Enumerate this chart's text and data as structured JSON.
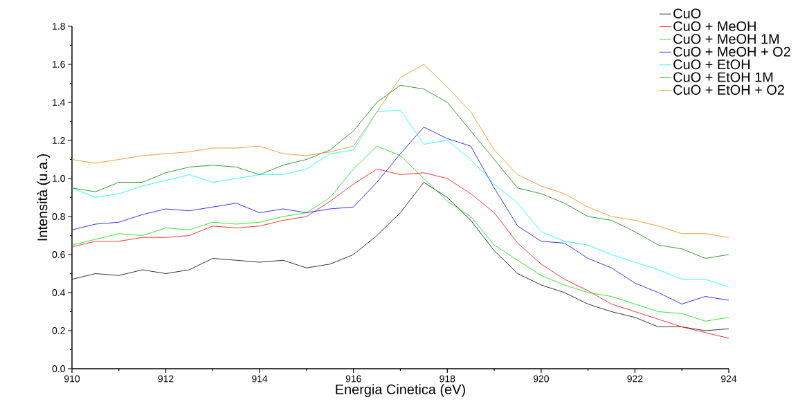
{
  "chart_data": {
    "type": "line",
    "xlabel": "Energia Cinetica (eV)",
    "ylabel": "Intensità (u.a.)",
    "x": [
      910,
      910.5,
      911,
      911.5,
      912,
      912.5,
      913,
      913.5,
      914,
      914.5,
      915,
      915.5,
      916,
      916.5,
      917,
      917.5,
      918,
      918.5,
      919,
      919.5,
      920,
      920.5,
      921,
      921.5,
      922,
      922.5,
      923,
      923.5,
      924
    ],
    "xlim": [
      910,
      924
    ],
    "xticks": [
      910,
      912,
      914,
      916,
      918,
      920,
      922,
      924
    ],
    "ylim": [
      0,
      1.8
    ],
    "yticks": [
      {
        "value": 0,
        "label": "0.0"
      },
      {
        "value": 0.2,
        "label": "0.2"
      },
      {
        "value": 0.4,
        "label": "0.4"
      },
      {
        "value": 0.6,
        "label": "0.6"
      },
      {
        "value": 0.8,
        "label": "0.8"
      },
      {
        "value": 1.0,
        "label": "1.0"
      },
      {
        "value": 1.2,
        "label": "1.2"
      },
      {
        "value": 1.4,
        "label": "1.4"
      },
      {
        "value": 1.6,
        "label": "1.6"
      },
      {
        "value": 1.8,
        "label": "1.8"
      }
    ],
    "grid": false,
    "legend": "top right",
    "marker": "none",
    "line_style": "solid",
    "series": [
      {
        "name": "CuO",
        "color": "#000000",
        "values": [
          0.47,
          0.5,
          0.49,
          0.52,
          0.5,
          0.52,
          0.58,
          0.57,
          0.56,
          0.57,
          0.53,
          0.55,
          0.6,
          0.7,
          0.82,
          0.98,
          0.9,
          0.78,
          0.62,
          0.5,
          0.44,
          0.4,
          0.34,
          0.3,
          0.27,
          0.22,
          0.22,
          0.2,
          0.21
        ]
      },
      {
        "name": "CuO + MeOH",
        "color": "#ff0000",
        "values": [
          0.64,
          0.67,
          0.67,
          0.69,
          0.69,
          0.7,
          0.75,
          0.74,
          0.75,
          0.78,
          0.8,
          0.88,
          0.97,
          1.05,
          1.02,
          1.03,
          1.0,
          0.92,
          0.82,
          0.66,
          0.55,
          0.47,
          0.41,
          0.34,
          0.3,
          0.26,
          0.22,
          0.19,
          0.16
        ]
      },
      {
        "name": "CuO + MeOH 1M",
        "color": "#00e000",
        "values": [
          0.65,
          0.68,
          0.71,
          0.7,
          0.74,
          0.73,
          0.77,
          0.76,
          0.77,
          0.8,
          0.82,
          0.9,
          1.05,
          1.17,
          1.12,
          1.0,
          0.88,
          0.8,
          0.65,
          0.57,
          0.49,
          0.44,
          0.4,
          0.38,
          0.34,
          0.3,
          0.29,
          0.25,
          0.27
        ]
      },
      {
        "name": "CuO + MeOH + O2",
        "color": "#0000ff",
        "values": [
          0.73,
          0.76,
          0.77,
          0.81,
          0.84,
          0.83,
          0.85,
          0.87,
          0.82,
          0.84,
          0.82,
          0.84,
          0.85,
          0.98,
          1.13,
          1.27,
          1.21,
          1.17,
          0.95,
          0.75,
          0.67,
          0.66,
          0.58,
          0.53,
          0.45,
          0.4,
          0.34,
          0.38,
          0.36
        ]
      },
      {
        "name": "CuO + EtOH",
        "color": "#00ffff",
        "values": [
          0.95,
          0.9,
          0.92,
          0.96,
          0.99,
          1.02,
          0.98,
          1.0,
          1.02,
          1.02,
          1.05,
          1.13,
          1.15,
          1.35,
          1.36,
          1.18,
          1.2,
          1.1,
          0.97,
          0.87,
          0.72,
          0.67,
          0.65,
          0.6,
          0.56,
          0.52,
          0.47,
          0.47,
          0.43
        ]
      },
      {
        "name": "CuO + EtOH 1M",
        "color": "#008000",
        "values": [
          0.95,
          0.93,
          0.98,
          0.98,
          1.03,
          1.06,
          1.07,
          1.06,
          1.02,
          1.07,
          1.1,
          1.15,
          1.25,
          1.4,
          1.49,
          1.47,
          1.4,
          1.25,
          1.1,
          0.95,
          0.92,
          0.87,
          0.8,
          0.78,
          0.72,
          0.65,
          0.63,
          0.58,
          0.6
        ]
      },
      {
        "name": "CuO + EtOH + O2",
        "color": "#ff8000",
        "values": [
          1.1,
          1.08,
          1.1,
          1.12,
          1.13,
          1.14,
          1.16,
          1.16,
          1.17,
          1.13,
          1.12,
          1.14,
          1.17,
          1.35,
          1.53,
          1.6,
          1.48,
          1.35,
          1.15,
          1.02,
          0.96,
          0.92,
          0.85,
          0.8,
          0.78,
          0.75,
          0.71,
          0.71,
          0.69
        ]
      }
    ]
  }
}
